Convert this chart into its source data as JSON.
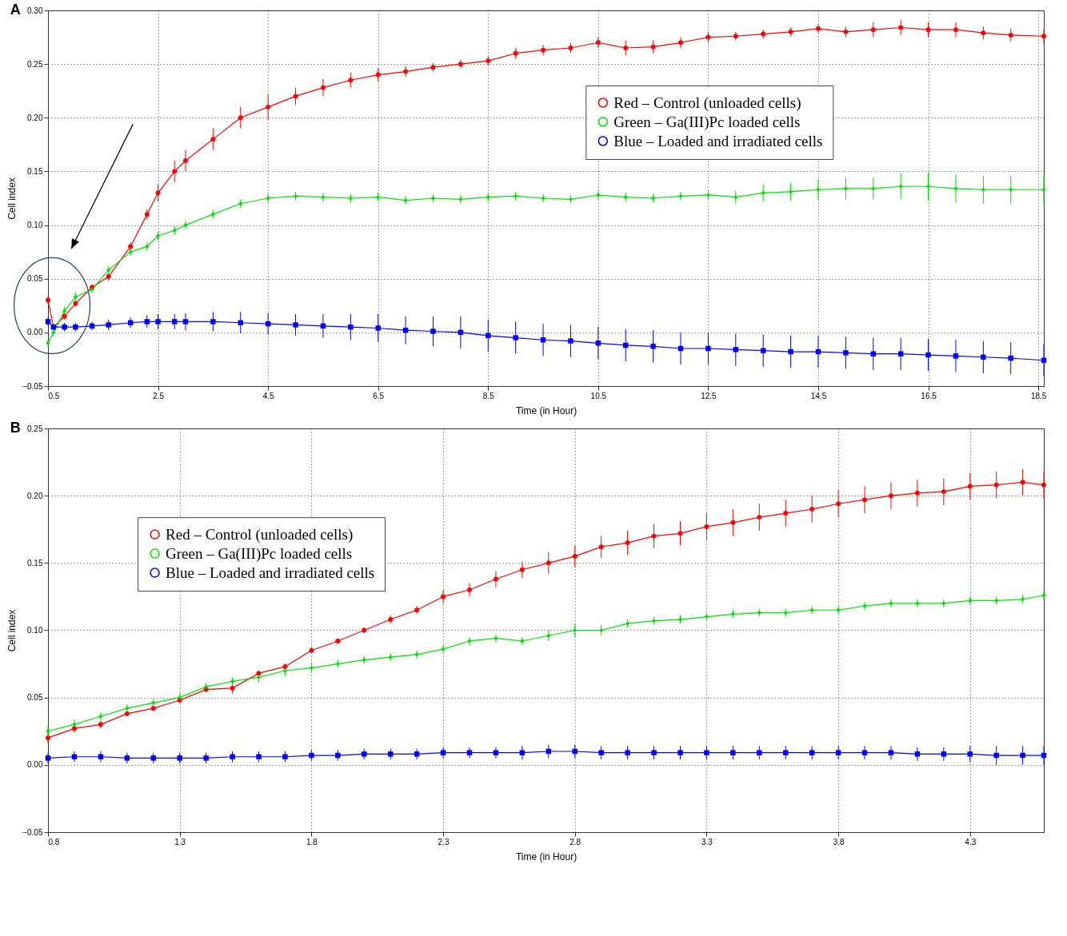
{
  "chart_data": [
    {
      "type": "line",
      "title": "A",
      "xlabel": "Time (in Hour)",
      "ylabel": "Cell index",
      "xlim": [
        0.5,
        18.6
      ],
      "ylim": [
        -0.05,
        0.3
      ],
      "xticks": [
        0.5,
        2.5,
        4.5,
        6.5,
        8.5,
        10.5,
        12.5,
        14.5,
        16.5,
        18.5
      ],
      "yticks": [
        {
          "value": -0.05,
          "label": "−0.05"
        },
        {
          "value": 0,
          "label": "0.00"
        },
        {
          "value": 0.05,
          "label": "0.05"
        },
        {
          "value": 0.1,
          "label": "0.10"
        },
        {
          "value": 0.15,
          "label": "0.15"
        },
        {
          "value": 0.2,
          "label": "0.20"
        },
        {
          "value": 0.25,
          "label": "0.25"
        },
        {
          "value": 0.3,
          "label": "0.30"
        }
      ],
      "grid": true,
      "legend": "top right",
      "x": [
        0.5,
        0.6,
        0.8,
        1.0,
        1.3,
        1.6,
        2.0,
        2.3,
        2.5,
        2.8,
        3.0,
        3.5,
        4.0,
        4.5,
        5.0,
        5.5,
        6.0,
        6.5,
        7.0,
        7.5,
        8.0,
        8.5,
        9.0,
        9.5,
        10.0,
        10.5,
        11.0,
        11.5,
        12.0,
        12.5,
        13.0,
        13.5,
        14.0,
        14.5,
        15.0,
        15.5,
        16.0,
        16.5,
        17.0,
        17.5,
        18.0,
        18.6
      ],
      "series": [
        {
          "name": "Red – Control (unloaded cells)",
          "color": "#ff0000",
          "marker": "circle",
          "values": [
            0.03,
            0.005,
            0.015,
            0.027,
            0.042,
            0.052,
            0.08,
            0.11,
            0.13,
            0.15,
            0.16,
            0.18,
            0.2,
            0.21,
            0.22,
            0.228,
            0.235,
            0.24,
            0.243,
            0.247,
            0.25,
            0.253,
            0.26,
            0.263,
            0.265,
            0.27,
            0.265,
            0.266,
            0.27,
            0.275,
            0.276,
            0.278,
            0.28,
            0.283,
            0.28,
            0.282,
            0.284,
            0.282,
            0.282,
            0.279,
            0.277,
            0.276
          ],
          "errors": [
            0.003,
            0.003,
            0.003,
            0.003,
            0.003,
            0.004,
            0.004,
            0.005,
            0.008,
            0.01,
            0.01,
            0.01,
            0.01,
            0.012,
            0.008,
            0.008,
            0.007,
            0.006,
            0.005,
            0.004,
            0.004,
            0.004,
            0.005,
            0.005,
            0.005,
            0.005,
            0.007,
            0.006,
            0.005,
            0.005,
            0.004,
            0.004,
            0.004,
            0.004,
            0.005,
            0.007,
            0.007,
            0.007,
            0.007,
            0.006,
            0.006,
            0.007
          ]
        },
        {
          "name": "Green – Ga(III)Pc loaded cells",
          "color": "#00e000",
          "marker": "diamond",
          "values": [
            -0.01,
            0.0,
            0.02,
            0.033,
            0.04,
            0.058,
            0.075,
            0.08,
            0.09,
            0.095,
            0.1,
            0.11,
            0.12,
            0.125,
            0.127,
            0.126,
            0.125,
            0.126,
            0.123,
            0.125,
            0.124,
            0.126,
            0.127,
            0.125,
            0.124,
            0.128,
            0.126,
            0.125,
            0.127,
            0.128,
            0.126,
            0.13,
            0.131,
            0.133,
            0.134,
            0.134,
            0.136,
            0.136,
            0.134,
            0.133,
            0.133,
            0.133
          ],
          "errors": [
            0.003,
            0.003,
            0.004,
            0.004,
            0.004,
            0.004,
            0.004,
            0.004,
            0.004,
            0.004,
            0.004,
            0.004,
            0.004,
            0.004,
            0.004,
            0.004,
            0.004,
            0.004,
            0.004,
            0.004,
            0.004,
            0.004,
            0.004,
            0.004,
            0.004,
            0.004,
            0.004,
            0.004,
            0.004,
            0.004,
            0.006,
            0.008,
            0.008,
            0.01,
            0.01,
            0.01,
            0.012,
            0.013,
            0.013,
            0.013,
            0.013,
            0.013
          ]
        },
        {
          "name": "Blue – Loaded and irradiated cells",
          "color": "#0000ff",
          "marker": "square",
          "values": [
            0.01,
            0.005,
            0.005,
            0.005,
            0.006,
            0.007,
            0.009,
            0.01,
            0.01,
            0.01,
            0.01,
            0.01,
            0.009,
            0.008,
            0.007,
            0.006,
            0.005,
            0.004,
            0.002,
            0.001,
            0.0,
            -0.003,
            -0.005,
            -0.007,
            -0.008,
            -0.01,
            -0.012,
            -0.013,
            -0.015,
            -0.015,
            -0.016,
            -0.017,
            -0.018,
            -0.018,
            -0.019,
            -0.02,
            -0.02,
            -0.021,
            -0.022,
            -0.023,
            -0.024,
            -0.026
          ],
          "errors": [
            0.004,
            null,
            0.004,
            0.004,
            0.004,
            0.005,
            0.005,
            0.006,
            0.007,
            0.007,
            0.008,
            0.009,
            0.01,
            0.01,
            0.01,
            0.011,
            0.012,
            0.013,
            0.013,
            0.014,
            0.015,
            0.015,
            0.015,
            0.015,
            0.015,
            0.015,
            0.015,
            0.015,
            0.015,
            0.015,
            0.015,
            0.015,
            0.015,
            0.015,
            0.015,
            0.015,
            0.015,
            0.015,
            0.015,
            0.015,
            0.015,
            0.015
          ]
        }
      ]
    },
    {
      "type": "line",
      "title": "B",
      "xlabel": "Time (in Hour)",
      "ylabel": "Cell index",
      "xlim": [
        0.8,
        4.58
      ],
      "ylim": [
        -0.05,
        0.25
      ],
      "xticks": [
        0.8,
        1.3,
        1.8,
        2.3,
        2.8,
        3.3,
        3.8,
        4.3
      ],
      "yticks": [
        {
          "value": -0.05,
          "label": "−0.05"
        },
        {
          "value": 0,
          "label": "0.00"
        },
        {
          "value": 0.05,
          "label": "0.05"
        },
        {
          "value": 0.1,
          "label": "0.10"
        },
        {
          "value": 0.15,
          "label": "0.15"
        },
        {
          "value": 0.2,
          "label": "0.20"
        },
        {
          "value": 0.25,
          "label": "0.25"
        }
      ],
      "grid": true,
      "legend": "top left",
      "x": [
        0.8,
        0.9,
        1.0,
        1.1,
        1.2,
        1.3,
        1.4,
        1.5,
        1.6,
        1.7,
        1.8,
        1.9,
        2.0,
        2.1,
        2.2,
        2.3,
        2.4,
        2.5,
        2.6,
        2.7,
        2.8,
        2.9,
        3.0,
        3.1,
        3.2,
        3.3,
        3.4,
        3.5,
        3.6,
        3.7,
        3.8,
        3.9,
        4.0,
        4.1,
        4.2,
        4.3,
        4.4,
        4.5,
        4.58
      ],
      "series": [
        {
          "name": "Red – Control (unloaded cells)",
          "color": "#ff0000",
          "marker": "circle",
          "values": [
            0.02,
            0.027,
            0.03,
            0.038,
            0.042,
            0.048,
            0.056,
            0.057,
            0.068,
            0.073,
            0.085,
            0.092,
            0.1,
            0.108,
            0.115,
            0.125,
            0.13,
            0.138,
            0.145,
            0.15,
            0.155,
            0.162,
            0.165,
            0.17,
            0.172,
            0.177,
            0.18,
            0.184,
            0.187,
            0.19,
            0.194,
            0.197,
            0.2,
            0.202,
            0.203,
            0.207,
            0.208,
            0.21,
            0.208
          ],
          "errors": [
            0.004,
            0.003,
            0.003,
            0.002,
            0.002,
            0.002,
            0.002,
            0.004,
            0.002,
            0.002,
            0.002,
            0.002,
            0.002,
            0.003,
            0.003,
            0.005,
            0.005,
            0.006,
            0.006,
            0.008,
            0.008,
            0.008,
            0.009,
            0.009,
            0.009,
            0.01,
            0.01,
            0.01,
            0.01,
            0.01,
            0.01,
            0.01,
            0.01,
            0.01,
            0.01,
            0.01,
            0.01,
            0.01,
            0.01
          ]
        },
        {
          "name": "Green – Ga(III)Pc loaded cells",
          "color": "#00e000",
          "marker": "diamond",
          "values": [
            0.025,
            0.03,
            0.036,
            0.042,
            0.046,
            0.05,
            0.058,
            0.062,
            0.065,
            0.07,
            0.072,
            0.075,
            0.078,
            0.08,
            0.082,
            0.086,
            0.092,
            0.094,
            0.092,
            0.096,
            0.1,
            0.1,
            0.105,
            0.107,
            0.108,
            0.11,
            0.112,
            0.113,
            0.113,
            0.115,
            0.115,
            0.118,
            0.12,
            0.12,
            0.12,
            0.122,
            0.122,
            0.123,
            0.126
          ],
          "errors": [
            0.004,
            0.004,
            0.003,
            0.003,
            0.003,
            0.003,
            0.003,
            0.003,
            0.004,
            0.004,
            0.004,
            0.003,
            0.003,
            0.003,
            0.003,
            0.003,
            0.003,
            0.003,
            0.003,
            0.004,
            0.005,
            0.004,
            0.003,
            0.003,
            0.003,
            0.003,
            0.003,
            0.003,
            0.003,
            0.003,
            0.003,
            0.003,
            0.003,
            0.003,
            0.003,
            0.003,
            0.003,
            0.003,
            0.003
          ]
        },
        {
          "name": "Blue – Loaded and irradiated cells",
          "color": "#0000ff",
          "marker": "square",
          "values": [
            0.005,
            0.006,
            0.006,
            0.005,
            0.005,
            0.005,
            0.005,
            0.006,
            0.006,
            0.006,
            0.007,
            0.007,
            0.008,
            0.008,
            0.008,
            0.009,
            0.009,
            0.009,
            0.009,
            0.01,
            0.01,
            0.009,
            0.009,
            0.009,
            0.009,
            0.009,
            0.009,
            0.009,
            0.009,
            0.009,
            0.009,
            0.009,
            0.009,
            0.008,
            0.008,
            0.008,
            0.007,
            0.007,
            0.007
          ],
          "errors": [
            0.004,
            0.004,
            0.004,
            0.004,
            0.004,
            0.004,
            0.004,
            0.004,
            0.004,
            0.004,
            0.004,
            0.004,
            0.004,
            0.004,
            0.004,
            0.004,
            0.004,
            0.004,
            0.005,
            0.005,
            0.005,
            0.005,
            0.005,
            0.005,
            0.005,
            0.005,
            0.005,
            0.005,
            0.005,
            0.005,
            0.005,
            0.005,
            0.005,
            0.005,
            0.005,
            0.006,
            0.007,
            0.007,
            0.007
          ]
        }
      ]
    }
  ]
}
